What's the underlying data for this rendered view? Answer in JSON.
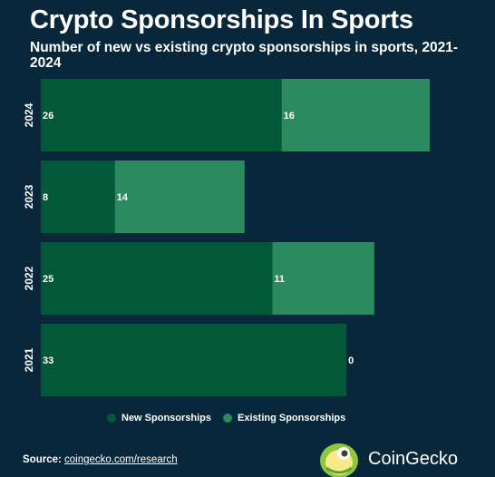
{
  "title": "Crypto Sponsorships In Sports",
  "subtitle": "Number of new vs existing crypto sponsorships in sports, 2021-2024",
  "colors": {
    "background": "#08273a",
    "new": "#02593a",
    "existing": "#2b8a5e",
    "text": "#ffffff"
  },
  "legend": {
    "new_label": "New Sponsorships",
    "existing_label": "Existing Sponsorships"
  },
  "source": {
    "label": "Source:",
    "text": "coingecko.com/research"
  },
  "brand": {
    "name": "CoinGecko",
    "logo_icon": "coingecko-logo"
  },
  "chart_data": {
    "type": "bar",
    "orientation": "horizontal",
    "stacked": true,
    "categories": [
      "2024",
      "2023",
      "2022",
      "2021"
    ],
    "series": [
      {
        "name": "New Sponsorships",
        "values": [
          26,
          8,
          25,
          33
        ]
      },
      {
        "name": "Existing Sponsorships",
        "values": [
          16,
          14,
          11,
          0
        ]
      }
    ],
    "title": "Crypto Sponsorships In Sports",
    "subtitle": "Number of new vs existing crypto sponsorships in sports, 2021-2024",
    "xlim": [
      0,
      46
    ],
    "legend_position": "bottom",
    "grid": false,
    "data_labels": true
  }
}
